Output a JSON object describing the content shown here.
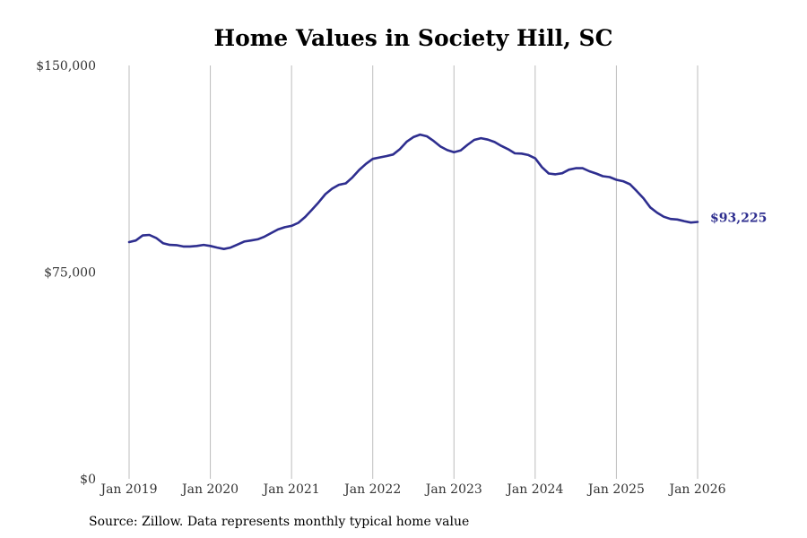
{
  "chart_data": {
    "type": "line",
    "title": "Home Values in Society Hill, SC",
    "xlabel": "",
    "ylabel": "",
    "ylim": [
      0,
      150000
    ],
    "y_ticks": [
      {
        "value": 0,
        "label": "$0"
      },
      {
        "value": 75000,
        "label": "$75,000"
      },
      {
        "value": 150000,
        "label": "$150,000"
      }
    ],
    "x_ticks": [
      {
        "value": 2019,
        "label": "Jan 2019"
      },
      {
        "value": 2020,
        "label": "Jan 2020"
      },
      {
        "value": 2021,
        "label": "Jan 2021"
      },
      {
        "value": 2022,
        "label": "Jan 2022"
      },
      {
        "value": 2023,
        "label": "Jan 2023"
      },
      {
        "value": 2024,
        "label": "Jan 2024"
      },
      {
        "value": 2025,
        "label": "Jan 2025"
      },
      {
        "value": 2026,
        "label": "Jan 2026"
      }
    ],
    "xlim": [
      2019,
      2026
    ],
    "grid": "vertical",
    "series": [
      {
        "name": "Typical home value",
        "color": "#2e2e8f",
        "end_label": "$93,225",
        "points": [
          [
            2019.0,
            85900
          ],
          [
            2019.083,
            86500
          ],
          [
            2019.167,
            88300
          ],
          [
            2019.25,
            88500
          ],
          [
            2019.333,
            87400
          ],
          [
            2019.417,
            85500
          ],
          [
            2019.5,
            84900
          ],
          [
            2019.583,
            84800
          ],
          [
            2019.667,
            84300
          ],
          [
            2019.75,
            84300
          ],
          [
            2019.833,
            84500
          ],
          [
            2019.917,
            84900
          ],
          [
            2020.0,
            84500
          ],
          [
            2020.083,
            83900
          ],
          [
            2020.167,
            83400
          ],
          [
            2020.25,
            83900
          ],
          [
            2020.333,
            85000
          ],
          [
            2020.417,
            86100
          ],
          [
            2020.5,
            86500
          ],
          [
            2020.583,
            86900
          ],
          [
            2020.667,
            87900
          ],
          [
            2020.75,
            89200
          ],
          [
            2020.833,
            90500
          ],
          [
            2020.917,
            91300
          ],
          [
            2021.0,
            91800
          ],
          [
            2021.083,
            92900
          ],
          [
            2021.167,
            95000
          ],
          [
            2021.25,
            97600
          ],
          [
            2021.333,
            100300
          ],
          [
            2021.417,
            103300
          ],
          [
            2021.5,
            105300
          ],
          [
            2021.583,
            106700
          ],
          [
            2021.667,
            107200
          ],
          [
            2021.75,
            109400
          ],
          [
            2021.833,
            112100
          ],
          [
            2021.917,
            114300
          ],
          [
            2022.0,
            116100
          ],
          [
            2022.083,
            116600
          ],
          [
            2022.167,
            117100
          ],
          [
            2022.25,
            117700
          ],
          [
            2022.333,
            119600
          ],
          [
            2022.417,
            122300
          ],
          [
            2022.5,
            124000
          ],
          [
            2022.583,
            124900
          ],
          [
            2022.667,
            124300
          ],
          [
            2022.75,
            122600
          ],
          [
            2022.833,
            120600
          ],
          [
            2022.917,
            119300
          ],
          [
            2023.0,
            118500
          ],
          [
            2023.083,
            119200
          ],
          [
            2023.167,
            121200
          ],
          [
            2023.25,
            123000
          ],
          [
            2023.333,
            123600
          ],
          [
            2023.417,
            123100
          ],
          [
            2023.5,
            122200
          ],
          [
            2023.583,
            120800
          ],
          [
            2023.667,
            119600
          ],
          [
            2023.75,
            118100
          ],
          [
            2023.833,
            118000
          ],
          [
            2023.917,
            117500
          ],
          [
            2024.0,
            116300
          ],
          [
            2024.083,
            113100
          ],
          [
            2024.167,
            110800
          ],
          [
            2024.25,
            110500
          ],
          [
            2024.333,
            110900
          ],
          [
            2024.417,
            112200
          ],
          [
            2024.5,
            112700
          ],
          [
            2024.583,
            112700
          ],
          [
            2024.667,
            111600
          ],
          [
            2024.75,
            110800
          ],
          [
            2024.833,
            109800
          ],
          [
            2024.917,
            109500
          ],
          [
            2025.0,
            108500
          ],
          [
            2025.083,
            108000
          ],
          [
            2025.167,
            106900
          ],
          [
            2025.25,
            104400
          ],
          [
            2025.333,
            101800
          ],
          [
            2025.417,
            98500
          ],
          [
            2025.5,
            96600
          ],
          [
            2025.583,
            95100
          ],
          [
            2025.667,
            94300
          ],
          [
            2025.75,
            94100
          ],
          [
            2025.833,
            93500
          ],
          [
            2025.917,
            93000
          ],
          [
            2026.0,
            93225
          ]
        ]
      }
    ]
  },
  "source_note": "Source: Zillow. Data represents monthly typical home value"
}
